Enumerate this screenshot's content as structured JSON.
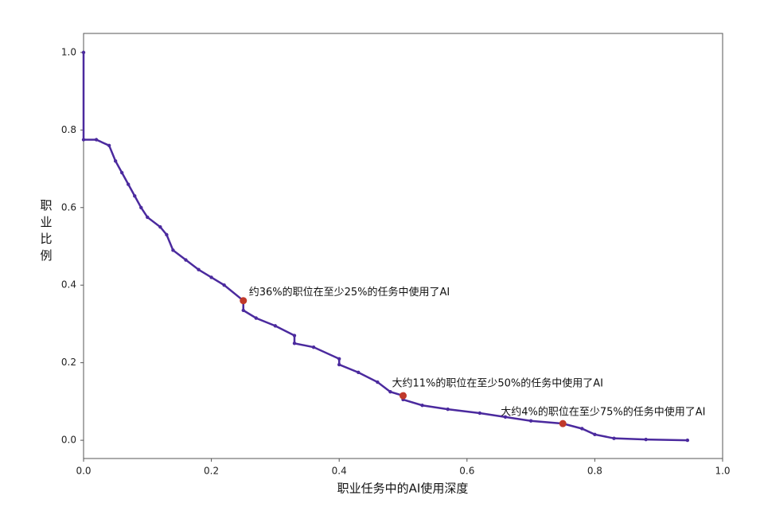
{
  "chart_data": {
    "type": "line",
    "xlabel": "职业任务中的AI使用深度",
    "ylabel": "职业比例",
    "xlim": [
      0,
      1
    ],
    "ylim": [
      -0.047,
      1.049
    ],
    "xticks": [
      {
        "value": 0,
        "label": "0.0"
      },
      0.2,
      0.4,
      0.6,
      0.8,
      {
        "value": 1,
        "label": "1.0"
      }
    ],
    "yticks": [
      {
        "value": 0,
        "label": "0.0"
      },
      0.2,
      0.4,
      0.6,
      0.8,
      {
        "value": 1,
        "label": "1.0"
      }
    ],
    "grid": false,
    "series": [
      {
        "color": "#4b2a9e",
        "x": [
          0,
          0,
          0.02,
          0.04,
          0.05,
          0.06,
          0.07,
          0.08,
          0.09,
          0.1,
          0.12,
          0.13,
          0.14,
          0.16,
          0.18,
          0.2,
          0.22,
          0.25,
          0.25,
          0.27,
          0.3,
          0.33,
          0.33,
          0.36,
          0.4,
          0.4,
          0.43,
          0.46,
          0.48,
          0.5,
          0.5,
          0.53,
          0.57,
          0.62,
          0.66,
          0.7,
          0.75,
          0.78,
          0.8,
          0.83,
          0.88,
          0.945
        ],
        "values": [
          1.0,
          0.775,
          0.775,
          0.76,
          0.72,
          0.69,
          0.66,
          0.63,
          0.6,
          0.575,
          0.55,
          0.53,
          0.49,
          0.465,
          0.44,
          0.42,
          0.4,
          0.36,
          0.335,
          0.315,
          0.295,
          0.27,
          0.25,
          0.24,
          0.21,
          0.195,
          0.175,
          0.15,
          0.125,
          0.115,
          0.105,
          0.09,
          0.08,
          0.07,
          0.06,
          0.05,
          0.043,
          0.03,
          0.015,
          0.005,
          0.002,
          0.0
        ]
      }
    ],
    "annotations": [
      {
        "text": "约36%的职位在至少25%的任务中使用了AI",
        "x": 0.25,
        "y": 0.36,
        "color": "#c0392b"
      },
      {
        "text": "大约11%的职位在至少50%的任务中使用了AI",
        "x": 0.5,
        "y": 0.115,
        "color": "#c0392b"
      },
      {
        "text": "大约4%的职位在至少75%的任务中使用了AI",
        "x": 0.75,
        "y": 0.043,
        "color": "#c0392b"
      }
    ]
  }
}
